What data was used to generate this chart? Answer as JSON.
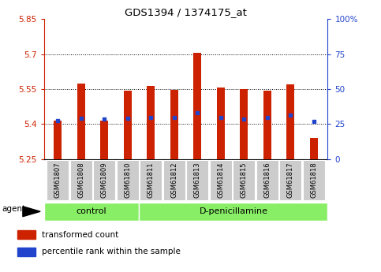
{
  "title": "GDS1394 / 1374175_at",
  "categories": [
    "GSM61807",
    "GSM61808",
    "GSM61809",
    "GSM61810",
    "GSM61811",
    "GSM61812",
    "GSM61813",
    "GSM61814",
    "GSM61815",
    "GSM61816",
    "GSM61817",
    "GSM61818"
  ],
  "bar_values": [
    5.415,
    5.575,
    5.415,
    5.543,
    5.565,
    5.548,
    5.705,
    5.558,
    5.55,
    5.543,
    5.57,
    5.34
  ],
  "blue_values": [
    5.415,
    5.425,
    5.42,
    5.425,
    5.428,
    5.428,
    5.45,
    5.428,
    5.42,
    5.428,
    5.44,
    5.41
  ],
  "bar_bottom": 5.25,
  "ylim_left": [
    5.25,
    5.85
  ],
  "ylim_right": [
    0,
    100
  ],
  "yticks_left": [
    5.25,
    5.4,
    5.55,
    5.7,
    5.85
  ],
  "yticks_right": [
    0,
    25,
    50,
    75,
    100
  ],
  "ytick_labels_left": [
    "5.25",
    "5.4",
    "5.55",
    "5.7",
    "5.85"
  ],
  "ytick_labels_right": [
    "0",
    "25",
    "50",
    "75",
    "100%"
  ],
  "dotted_lines": [
    5.4,
    5.55,
    5.7
  ],
  "bar_color": "#cc2200",
  "blue_color": "#2244cc",
  "bg_plot_color": "#ffffff",
  "control_indices": [
    0,
    1,
    2,
    3
  ],
  "treatment_indices": [
    4,
    5,
    6,
    7,
    8,
    9,
    10,
    11
  ],
  "control_label": "control",
  "treatment_label": "D-penicillamine",
  "agent_label": "agent",
  "group_bg_color": "#88ee66",
  "tick_area_bg": "#cccccc",
  "legend_red": "transformed count",
  "legend_blue": "percentile rank within the sample",
  "bar_width": 0.35
}
